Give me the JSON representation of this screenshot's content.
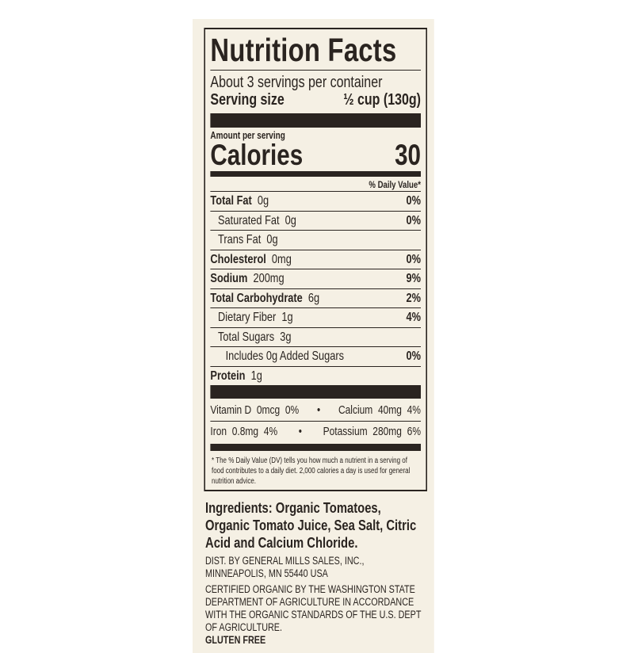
{
  "title": "Nutrition Facts",
  "servings": "About 3 servings per container",
  "serving_size_label": "Serving size",
  "serving_size_value": "½ cup (130g)",
  "amount_per_serving": "Amount per serving",
  "calories_label": "Calories",
  "calories_value": "30",
  "dv_header": "% Daily Value*",
  "nutrients": [
    {
      "name": "Total Fat",
      "amount": "0g",
      "dv": "0%"
    },
    {
      "name": "Saturated Fat",
      "amount": "0g",
      "dv": "0%"
    },
    {
      "name": "Trans Fat",
      "amount": "0g",
      "dv": ""
    },
    {
      "name": "Cholesterol",
      "amount": "0mg",
      "dv": "0%"
    },
    {
      "name": "Sodium",
      "amount": "200mg",
      "dv": "9%"
    },
    {
      "name": "Total Carbohydrate",
      "amount": "6g",
      "dv": "2%"
    },
    {
      "name": "Dietary Fiber",
      "amount": "1g",
      "dv": "4%"
    },
    {
      "name": "Total Sugars",
      "amount": "3g",
      "dv": ""
    },
    {
      "name": "Includes 0g Added Sugars",
      "amount": "",
      "dv": "0%"
    },
    {
      "name": "Protein",
      "amount": "1g",
      "dv": ""
    }
  ],
  "vitamins": [
    {
      "left": "Vitamin D  0mcg  0%",
      "right": "Calcium  40mg  4%"
    },
    {
      "left": "Iron  0.8mg  4%",
      "right": "Potassium  280mg  6%"
    }
  ],
  "bullet": "•",
  "footnote": "* The % Daily Value (DV) tells you how much a nutrient in a serving of food contributes to a daily diet. 2,000 calories a day is used for general nutrition advice.",
  "ingredients": "Ingredients: Organic Tomatoes, Organic Tomato Juice, Sea Salt, Citric Acid and Calcium Chloride.",
  "distributor": "DIST. BY GENERAL MILLS SALES, INC., MINNEAPOLIS, MN 55440 USA",
  "certified": "CERTIFIED ORGANIC BY THE WASHINGTON STATE DEPARTMENT OF AGRICULTURE IN ACCORDANCE WITH THE ORGANIC STANDARDS OF THE U.S. DEPT OF AGRICULTURE.",
  "gluten_free": "GLUTEN FREE"
}
